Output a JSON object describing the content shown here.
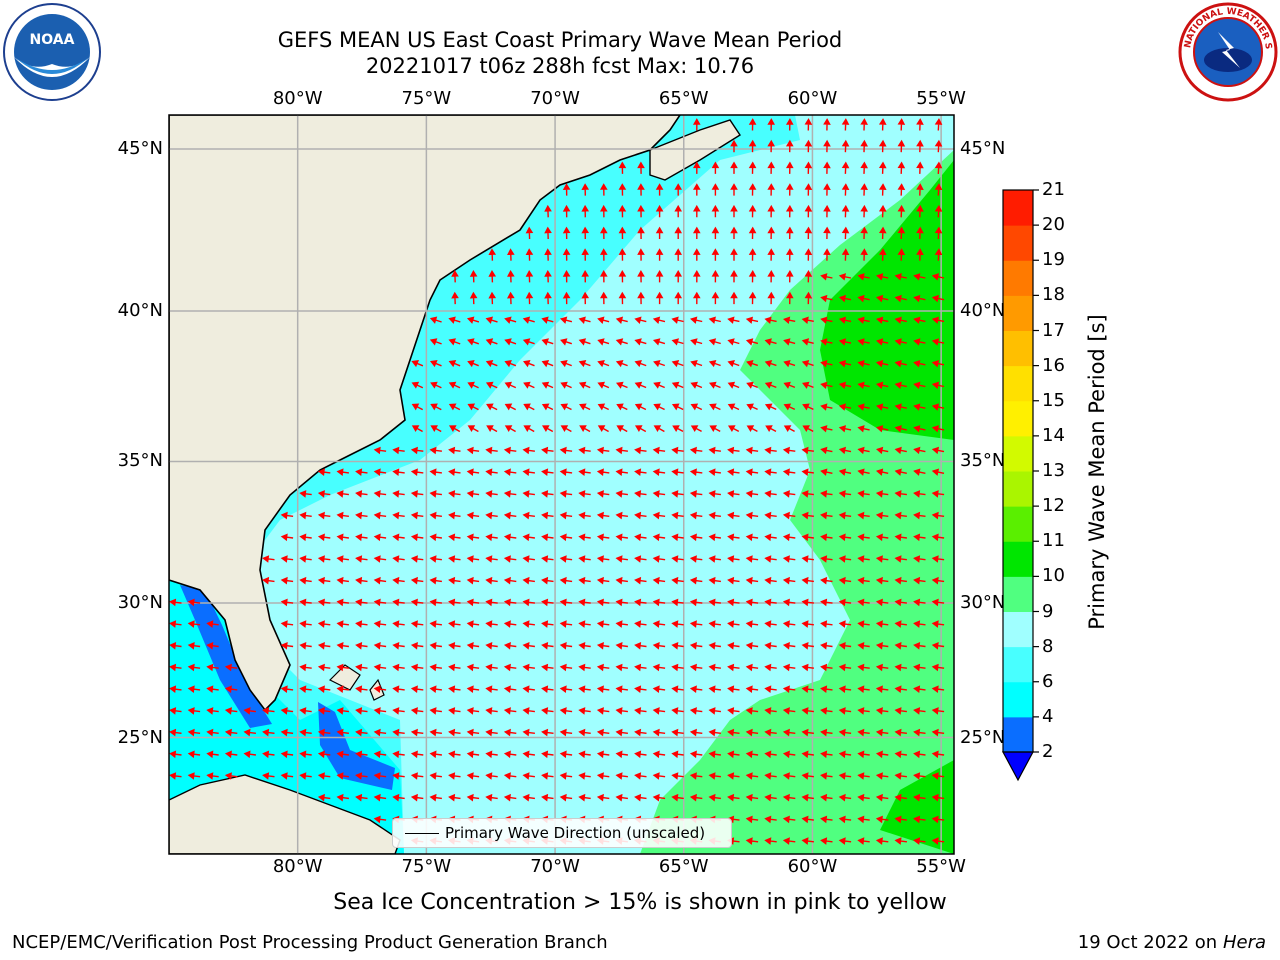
{
  "title": {
    "line1": "GEFS MEAN US East Coast Primary Wave Mean Period",
    "line2": "20221017 t06z 288h fcst   Max: 10.76"
  },
  "logos": {
    "left": {
      "icon": "noaa-logo",
      "text": "NOAA"
    },
    "right": {
      "icon": "nws-logo",
      "text": "NATIONAL WEATHER SERVICE"
    }
  },
  "map": {
    "lon_labels": [
      "80°W",
      "75°W",
      "70°W",
      "65°W",
      "60°W",
      "55°W"
    ],
    "lat_labels": [
      "45°N",
      "40°N",
      "35°N",
      "30°N",
      "25°N"
    ],
    "lon_values": [
      -80,
      -75,
      -70,
      -65,
      -60,
      -55
    ],
    "lat_values": [
      45,
      40,
      35,
      30,
      25
    ],
    "lon_range": [
      -85,
      -54.5
    ],
    "lat_range": [
      20.5,
      46
    ],
    "land_color": "#efedde",
    "grid_color": "#b0b0b0",
    "arrow_color": "#ff0000",
    "legend_label": "Primary Wave Direction (unscaled)"
  },
  "colorbar": {
    "label": "Primary Wave Mean Period [s]",
    "ticks": [
      "2",
      "4",
      "6",
      "8",
      "9",
      "10",
      "11",
      "12",
      "13",
      "14",
      "15",
      "16",
      "17",
      "18",
      "19",
      "20",
      "21"
    ],
    "colors": [
      "#0a6eff",
      "#00ffff",
      "#48ffff",
      "#a0ffff",
      "#50ff80",
      "#00e600",
      "#5aef00",
      "#aaf500",
      "#d2fa00",
      "#fff000",
      "#ffe000",
      "#ffbf00",
      "#ff9a00",
      "#ff7a00",
      "#ff4800",
      "#ff1c00"
    ],
    "extend_color": "#0000ff"
  },
  "footer": {
    "note": "Sea Ice Concentration > 15% is shown in pink to yellow",
    "left": "NCEP/EMC/Verification Post Processing Product Generation Branch",
    "right_date": "19 Oct 2022 on",
    "right_machine": "Hera"
  }
}
